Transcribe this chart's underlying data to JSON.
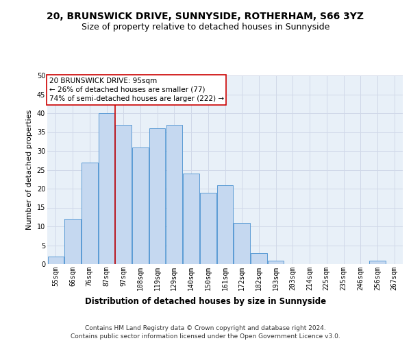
{
  "title1": "20, BRUNSWICK DRIVE, SUNNYSIDE, ROTHERHAM, S66 3YZ",
  "title2": "Size of property relative to detached houses in Sunnyside",
  "xlabel": "Distribution of detached houses by size in Sunnyside",
  "ylabel": "Number of detached properties",
  "categories": [
    "55sqm",
    "66sqm",
    "76sqm",
    "87sqm",
    "97sqm",
    "108sqm",
    "119sqm",
    "129sqm",
    "140sqm",
    "150sqm",
    "161sqm",
    "172sqm",
    "182sqm",
    "193sqm",
    "203sqm",
    "214sqm",
    "225sqm",
    "235sqm",
    "246sqm",
    "256sqm",
    "267sqm"
  ],
  "values": [
    2,
    12,
    27,
    40,
    37,
    31,
    36,
    37,
    24,
    19,
    21,
    11,
    3,
    1,
    0,
    0,
    0,
    0,
    0,
    1,
    0
  ],
  "bar_color": "#c5d8f0",
  "bar_edge_color": "#5b9bd5",
  "red_line_x": 3.5,
  "annotation_line1": "20 BRUNSWICK DRIVE: 95sqm",
  "annotation_line2": "← 26% of detached houses are smaller (77)",
  "annotation_line3": "74% of semi-detached houses are larger (222) →",
  "red_line_color": "#cc0000",
  "ylim": [
    0,
    50
  ],
  "yticks": [
    0,
    5,
    10,
    15,
    20,
    25,
    30,
    35,
    40,
    45,
    50
  ],
  "grid_color": "#d0d8e8",
  "bg_color": "#e8f0f8",
  "footer1": "Contains HM Land Registry data © Crown copyright and database right 2024.",
  "footer2": "Contains public sector information licensed under the Open Government Licence v3.0.",
  "title1_fontsize": 10,
  "title2_fontsize": 9,
  "xlabel_fontsize": 8.5,
  "ylabel_fontsize": 8,
  "tick_fontsize": 7,
  "footer_fontsize": 6.5,
  "annot_fontsize": 7.5
}
